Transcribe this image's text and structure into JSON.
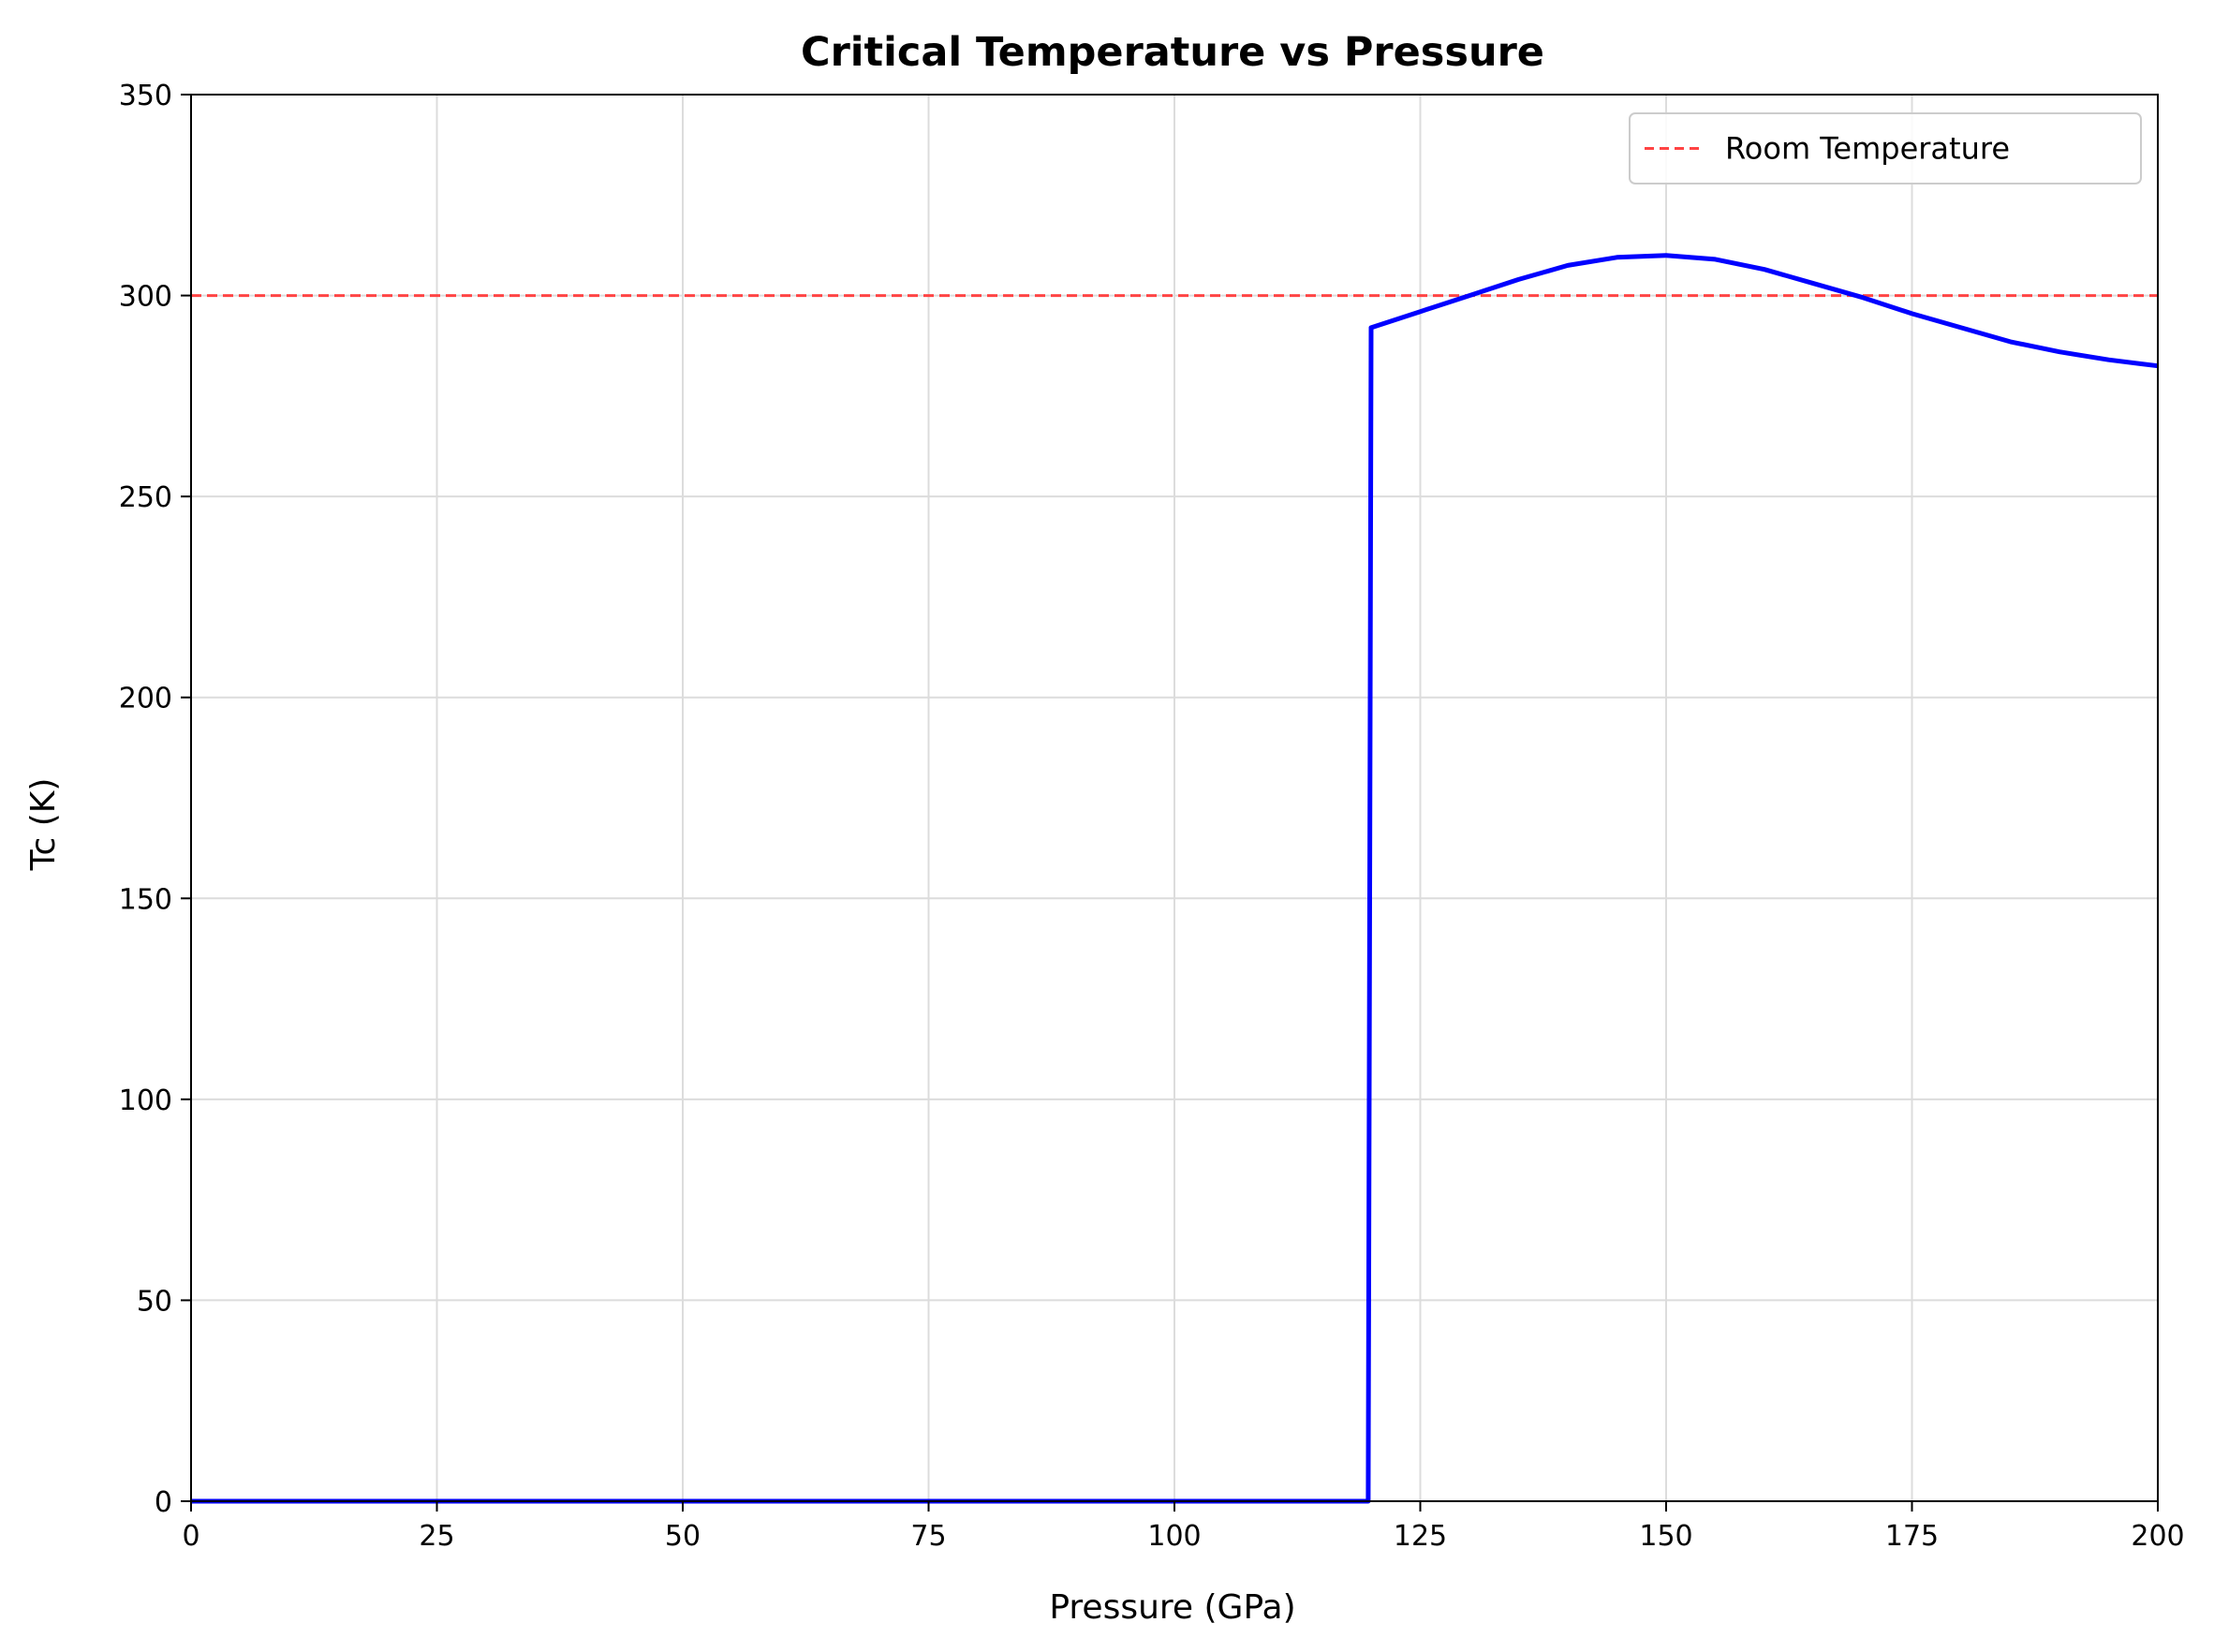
{
  "chart_data": {
    "type": "line",
    "title": "Critical Temperature vs Pressure",
    "xlabel": "Pressure (GPa)",
    "ylabel": "Tc (K)",
    "xlim": [
      0,
      200
    ],
    "ylim": [
      0,
      350
    ],
    "xticks": [
      0,
      25,
      50,
      75,
      100,
      125,
      150,
      175,
      200
    ],
    "yticks": [
      0,
      50,
      100,
      150,
      200,
      250,
      300,
      350
    ],
    "grid": true,
    "legend_position": "top-right",
    "series": [
      {
        "name": "",
        "color": "#0000ff",
        "style": "solid",
        "x": [
          0,
          119.7,
          120,
          125,
          130,
          135,
          140,
          145,
          150,
          155,
          160,
          165,
          170,
          175,
          180,
          185,
          190,
          195,
          200
        ],
        "y": [
          0,
          0,
          292,
          296,
          300,
          304,
          307.5,
          309.5,
          310,
          309,
          306.5,
          303,
          299.5,
          295.5,
          292,
          288.5,
          286,
          284,
          282.5
        ]
      },
      {
        "name": "Room Temperature",
        "color": "#ff3333",
        "style": "dashed",
        "x": [
          0,
          200
        ],
        "y": [
          300,
          300
        ]
      }
    ]
  },
  "colors": {
    "line_main": "#0000ff",
    "line_reference": "#ff4444",
    "grid": "#dcdcdc",
    "axes": "#000000"
  }
}
